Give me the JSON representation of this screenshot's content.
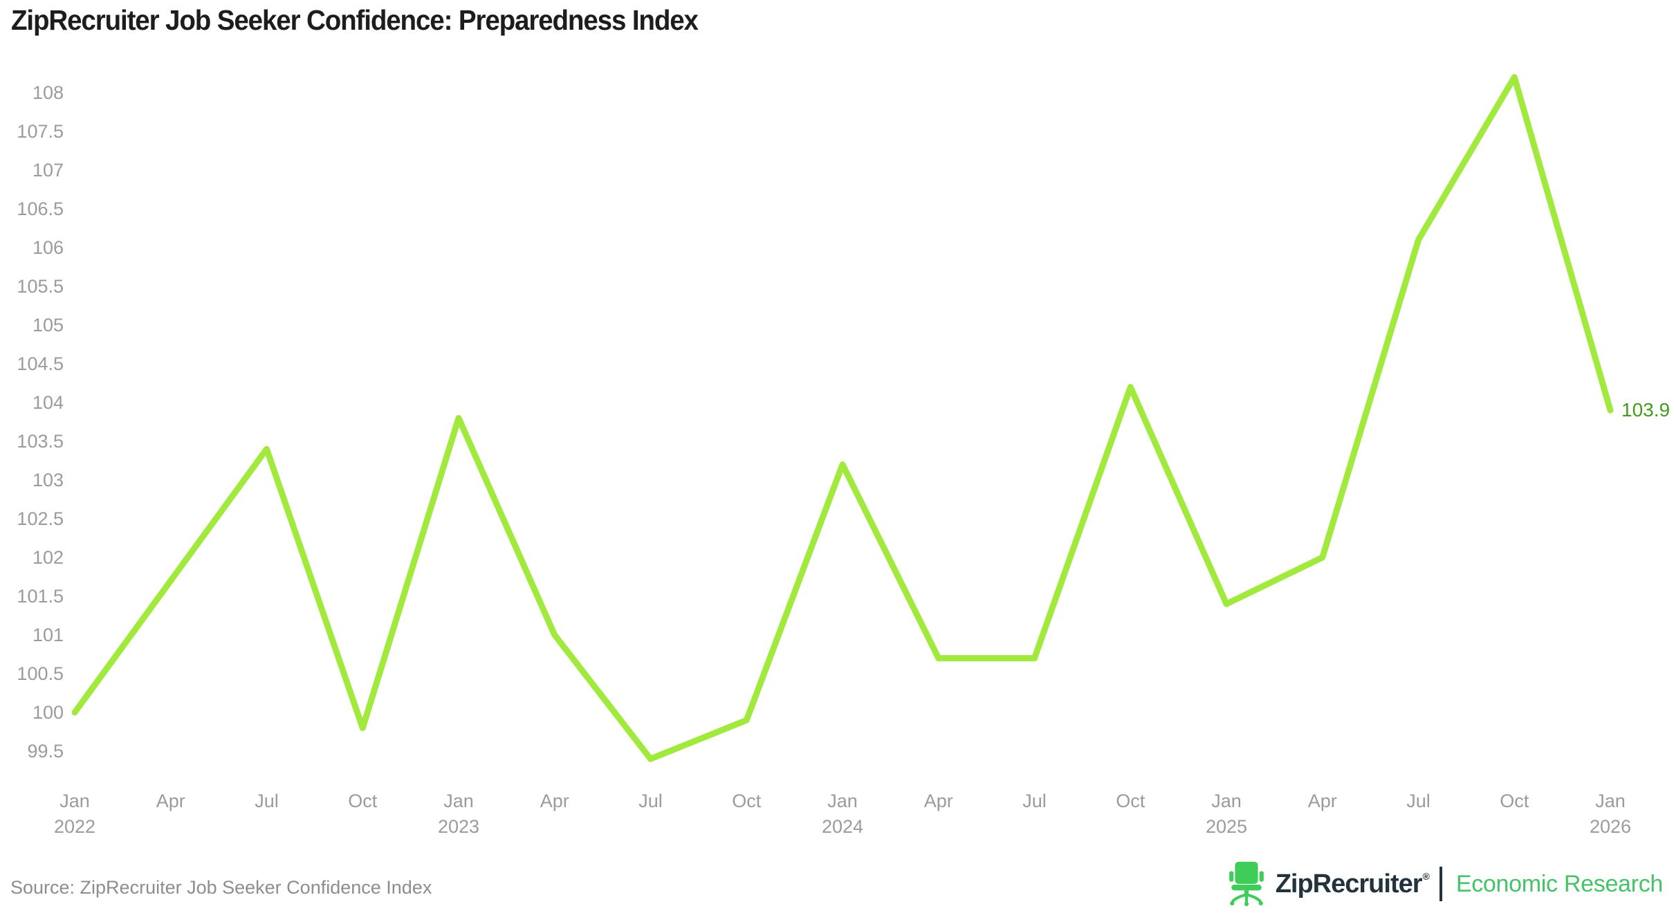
{
  "title": "ZipRecruiter Job Seeker Confidence: Preparedness Index",
  "source_note": "Source: ZipRecruiter Job Seeker Confidence Index",
  "branding": {
    "logo_text": "ZipRecruiter",
    "registered_mark": "®",
    "sub_brand": "Economic Research"
  },
  "colors": {
    "background": "#ffffff",
    "title": "#1d1d1d",
    "line": "#a2e93e",
    "end_label": "#459a1d",
    "axis_label": "#9b9b9b",
    "source": "#8d8d8d",
    "brand_navy": "#22333e",
    "chair_green": "#3ecd58",
    "research_green": "#46c268"
  },
  "chart_data": {
    "type": "line",
    "title": "ZipRecruiter Job Seeker Confidence: Preparedness Index",
    "xlabel": "",
    "ylabel": "",
    "grid": false,
    "legend": false,
    "ylim": [
      99.4,
      108.2
    ],
    "y_tick_step": 0.5,
    "y_ticks": [
      108,
      107.5,
      107,
      106.5,
      106,
      105.5,
      105,
      104.5,
      104,
      103.5,
      103,
      102.5,
      102,
      101.5,
      101,
      100.5,
      100,
      99.5
    ],
    "x_ticks": [
      {
        "month": "Jan",
        "year": "2022"
      },
      {
        "month": "Apr",
        "year": ""
      },
      {
        "month": "Jul",
        "year": ""
      },
      {
        "month": "Oct",
        "year": ""
      },
      {
        "month": "Jan",
        "year": "2023"
      },
      {
        "month": "Apr",
        "year": ""
      },
      {
        "month": "Jul",
        "year": ""
      },
      {
        "month": "Oct",
        "year": ""
      },
      {
        "month": "Jan",
        "year": "2024"
      },
      {
        "month": "Apr",
        "year": ""
      },
      {
        "month": "Jul",
        "year": ""
      },
      {
        "month": "Oct",
        "year": ""
      },
      {
        "month": "Jan",
        "year": "2025"
      },
      {
        "month": "Apr",
        "year": ""
      },
      {
        "month": "Jul",
        "year": ""
      },
      {
        "month": "Oct",
        "year": ""
      },
      {
        "month": "Jan",
        "year": "2026"
      }
    ],
    "series": [
      {
        "name": "Preparedness Index",
        "x": [
          "Jan 2022",
          "Apr 2022",
          "Jul 2022",
          "Oct 2022",
          "Jan 2023",
          "Apr 2023",
          "Jul 2023",
          "Oct 2023",
          "Jan 2024",
          "Apr 2024",
          "Jul 2024",
          "Oct 2024",
          "Jan 2025",
          "Apr 2025",
          "Jul 2025",
          "Oct 2025",
          "Jan 2026"
        ],
        "values": [
          100.0,
          101.7,
          103.4,
          99.8,
          103.8,
          101.0,
          99.4,
          99.9,
          103.2,
          100.7,
          100.7,
          104.2,
          101.4,
          102.0,
          106.1,
          108.2,
          103.9
        ]
      }
    ],
    "last_point_label": "103.9"
  }
}
